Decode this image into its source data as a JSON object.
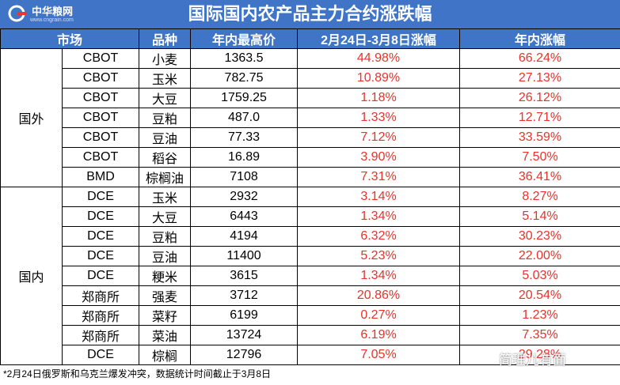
{
  "header": {
    "logo": "中华粮网",
    "logo_url": "www.cngrain.com",
    "title": "国际国内农产品主力合约涨跌幅"
  },
  "table": {
    "columns": [
      "市场",
      "品种",
      "年内最高价",
      "2月24日-3月8日涨幅",
      "年内涨幅"
    ],
    "groups": [
      {
        "name": "国外",
        "rows": [
          [
            "CBOT",
            "小麦",
            "1363.5",
            "44.98%",
            "66.24%"
          ],
          [
            "CBOT",
            "玉米",
            "782.75",
            "10.89%",
            "27.13%"
          ],
          [
            "CBOT",
            "大豆",
            "1759.25",
            "1.18%",
            "26.12%"
          ],
          [
            "CBOT",
            "豆粕",
            "487.0",
            "1.33%",
            "12.71%"
          ],
          [
            "CBOT",
            "豆油",
            "77.33",
            "7.12%",
            "33.59%"
          ],
          [
            "CBOT",
            "稻谷",
            "16.89",
            "3.90%",
            "7.50%"
          ],
          [
            "BMD",
            "棕榈油",
            "7108",
            "7.31%",
            "36.41%"
          ]
        ]
      },
      {
        "name": "国内",
        "rows": [
          [
            "DCE",
            "玉米",
            "2932",
            "3.14%",
            "8.27%"
          ],
          [
            "DCE",
            "大豆",
            "6443",
            "1.34%",
            "5.14%"
          ],
          [
            "DCE",
            "豆粕",
            "4194",
            "6.32%",
            "30.23%"
          ],
          [
            "DCE",
            "豆油",
            "11400",
            "5.23%",
            "22.00%"
          ],
          [
            "DCE",
            "粳米",
            "3615",
            "1.34%",
            "5.03%"
          ],
          [
            "郑商所",
            "强麦",
            "3712",
            "20.86%",
            "20.54%"
          ],
          [
            "郑商所",
            "菜籽",
            "6199",
            "0.27%",
            "1.23%"
          ],
          [
            "郑商所",
            "菜油",
            "13724",
            "6.19%",
            "7.35%"
          ],
          [
            "DCE",
            "棕榈",
            "12796",
            "7.05%",
            "29.28%"
          ]
        ]
      }
    ]
  },
  "footnote": "*2月24日俄罗斯和乌克兰爆发冲突，数据统计时间截止于3月8日",
  "watermark": "简理儿有面"
}
